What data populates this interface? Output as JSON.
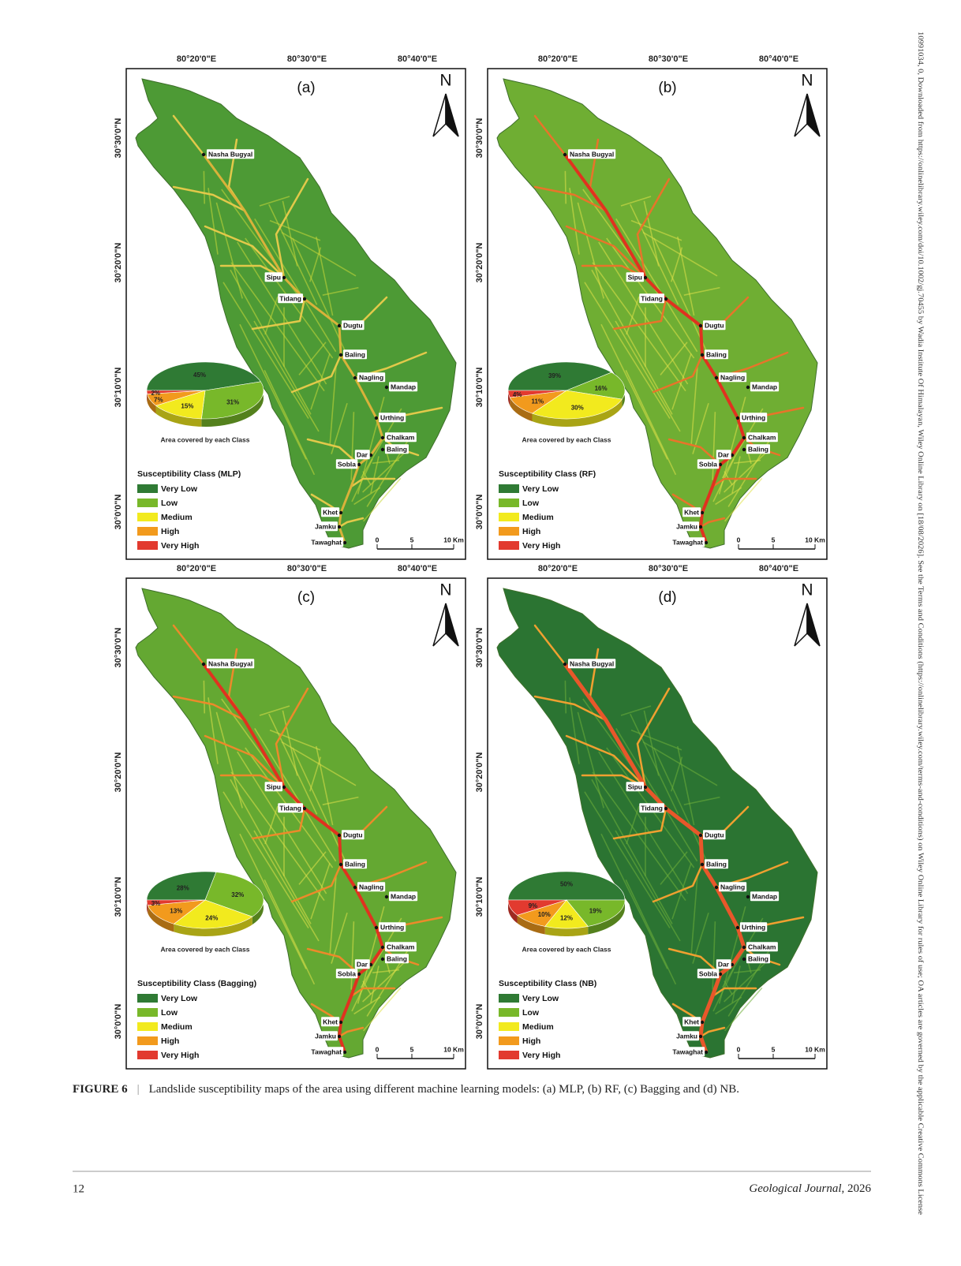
{
  "side_note": "10991034, 0, Downloaded from https://onlinelibrary.wiley.com/doi/10.1002/gj.70455 by Wadia Institute Of Himalayan, Wiley Online Library on [18/08/2026]. See the Terms and Conditions (https://onlinelibrary.wiley.com/terms-and-conditions) on Wiley Online Library for rules of use; OA articles are governed by the applicable Creative Commons License",
  "figure": {
    "lon_labels": [
      "80°20'0\"E",
      "80°30'0\"E",
      "80°40'0\"E"
    ],
    "lat_labels": [
      "30°30'0\"N",
      "30°20'0\"N",
      "30°10'0\"N",
      "30°0'0\"N"
    ],
    "north": "N",
    "pie_caption": "Area covered by each Class",
    "scale_labels": [
      "0",
      "5",
      "10 Km"
    ],
    "places": [
      "Nasha Bugyal",
      "Sipu",
      "Tidang",
      "Dugtu",
      "Baling",
      "Nagling",
      "Mandap",
      "Urthing",
      "Chalkam",
      "Baling",
      "Dar",
      "Sobla",
      "Khet",
      "Jamku",
      "Tawaghat"
    ],
    "classes": [
      {
        "name": "Very Low",
        "color": "#2f7a34"
      },
      {
        "name": "Low",
        "color": "#78b82a"
      },
      {
        "name": "Medium",
        "color": "#f2ea1e"
      },
      {
        "name": "High",
        "color": "#f29a1d"
      },
      {
        "name": "Very High",
        "color": "#e23a2f"
      }
    ],
    "panels": [
      {
        "label": "(a)",
        "legend_title": "Susceptibility Class (MLP)",
        "pie": {
          "values": [
            45,
            31,
            15,
            7,
            2
          ],
          "value_labels": [
            "45%",
            "31%",
            "15%",
            "7%",
            "2%"
          ]
        }
      },
      {
        "label": "(b)",
        "legend_title": "Susceptibility Class (RF)",
        "pie": {
          "values": [
            39,
            16,
            30,
            11,
            4
          ],
          "value_labels": [
            "39%",
            "16%",
            "30%",
            "11%",
            "4%"
          ]
        }
      },
      {
        "label": "(c)",
        "legend_title": "Susceptibility Class (Bagging)",
        "pie": {
          "values": [
            28,
            32,
            24,
            13,
            3
          ],
          "value_labels": [
            "28%",
            "32%",
            "24%",
            "13%",
            "3%"
          ]
        }
      },
      {
        "label": "(d)",
        "legend_title": "Susceptibility Class (NB)",
        "pie": {
          "values": [
            50,
            19,
            12,
            10,
            9
          ],
          "value_labels": [
            "50%",
            "19%",
            "12%",
            "10%",
            "9%"
          ]
        }
      }
    ]
  },
  "caption": {
    "label": "FIGURE 6",
    "separator": "|",
    "text": "Landslide susceptibility maps of the area using different machine learning models: (a) MLP, (b) RF, (c) Bagging and (d) NB."
  },
  "footer": {
    "page": "12",
    "journal": "Geological Journal",
    "year": ", 2026"
  }
}
